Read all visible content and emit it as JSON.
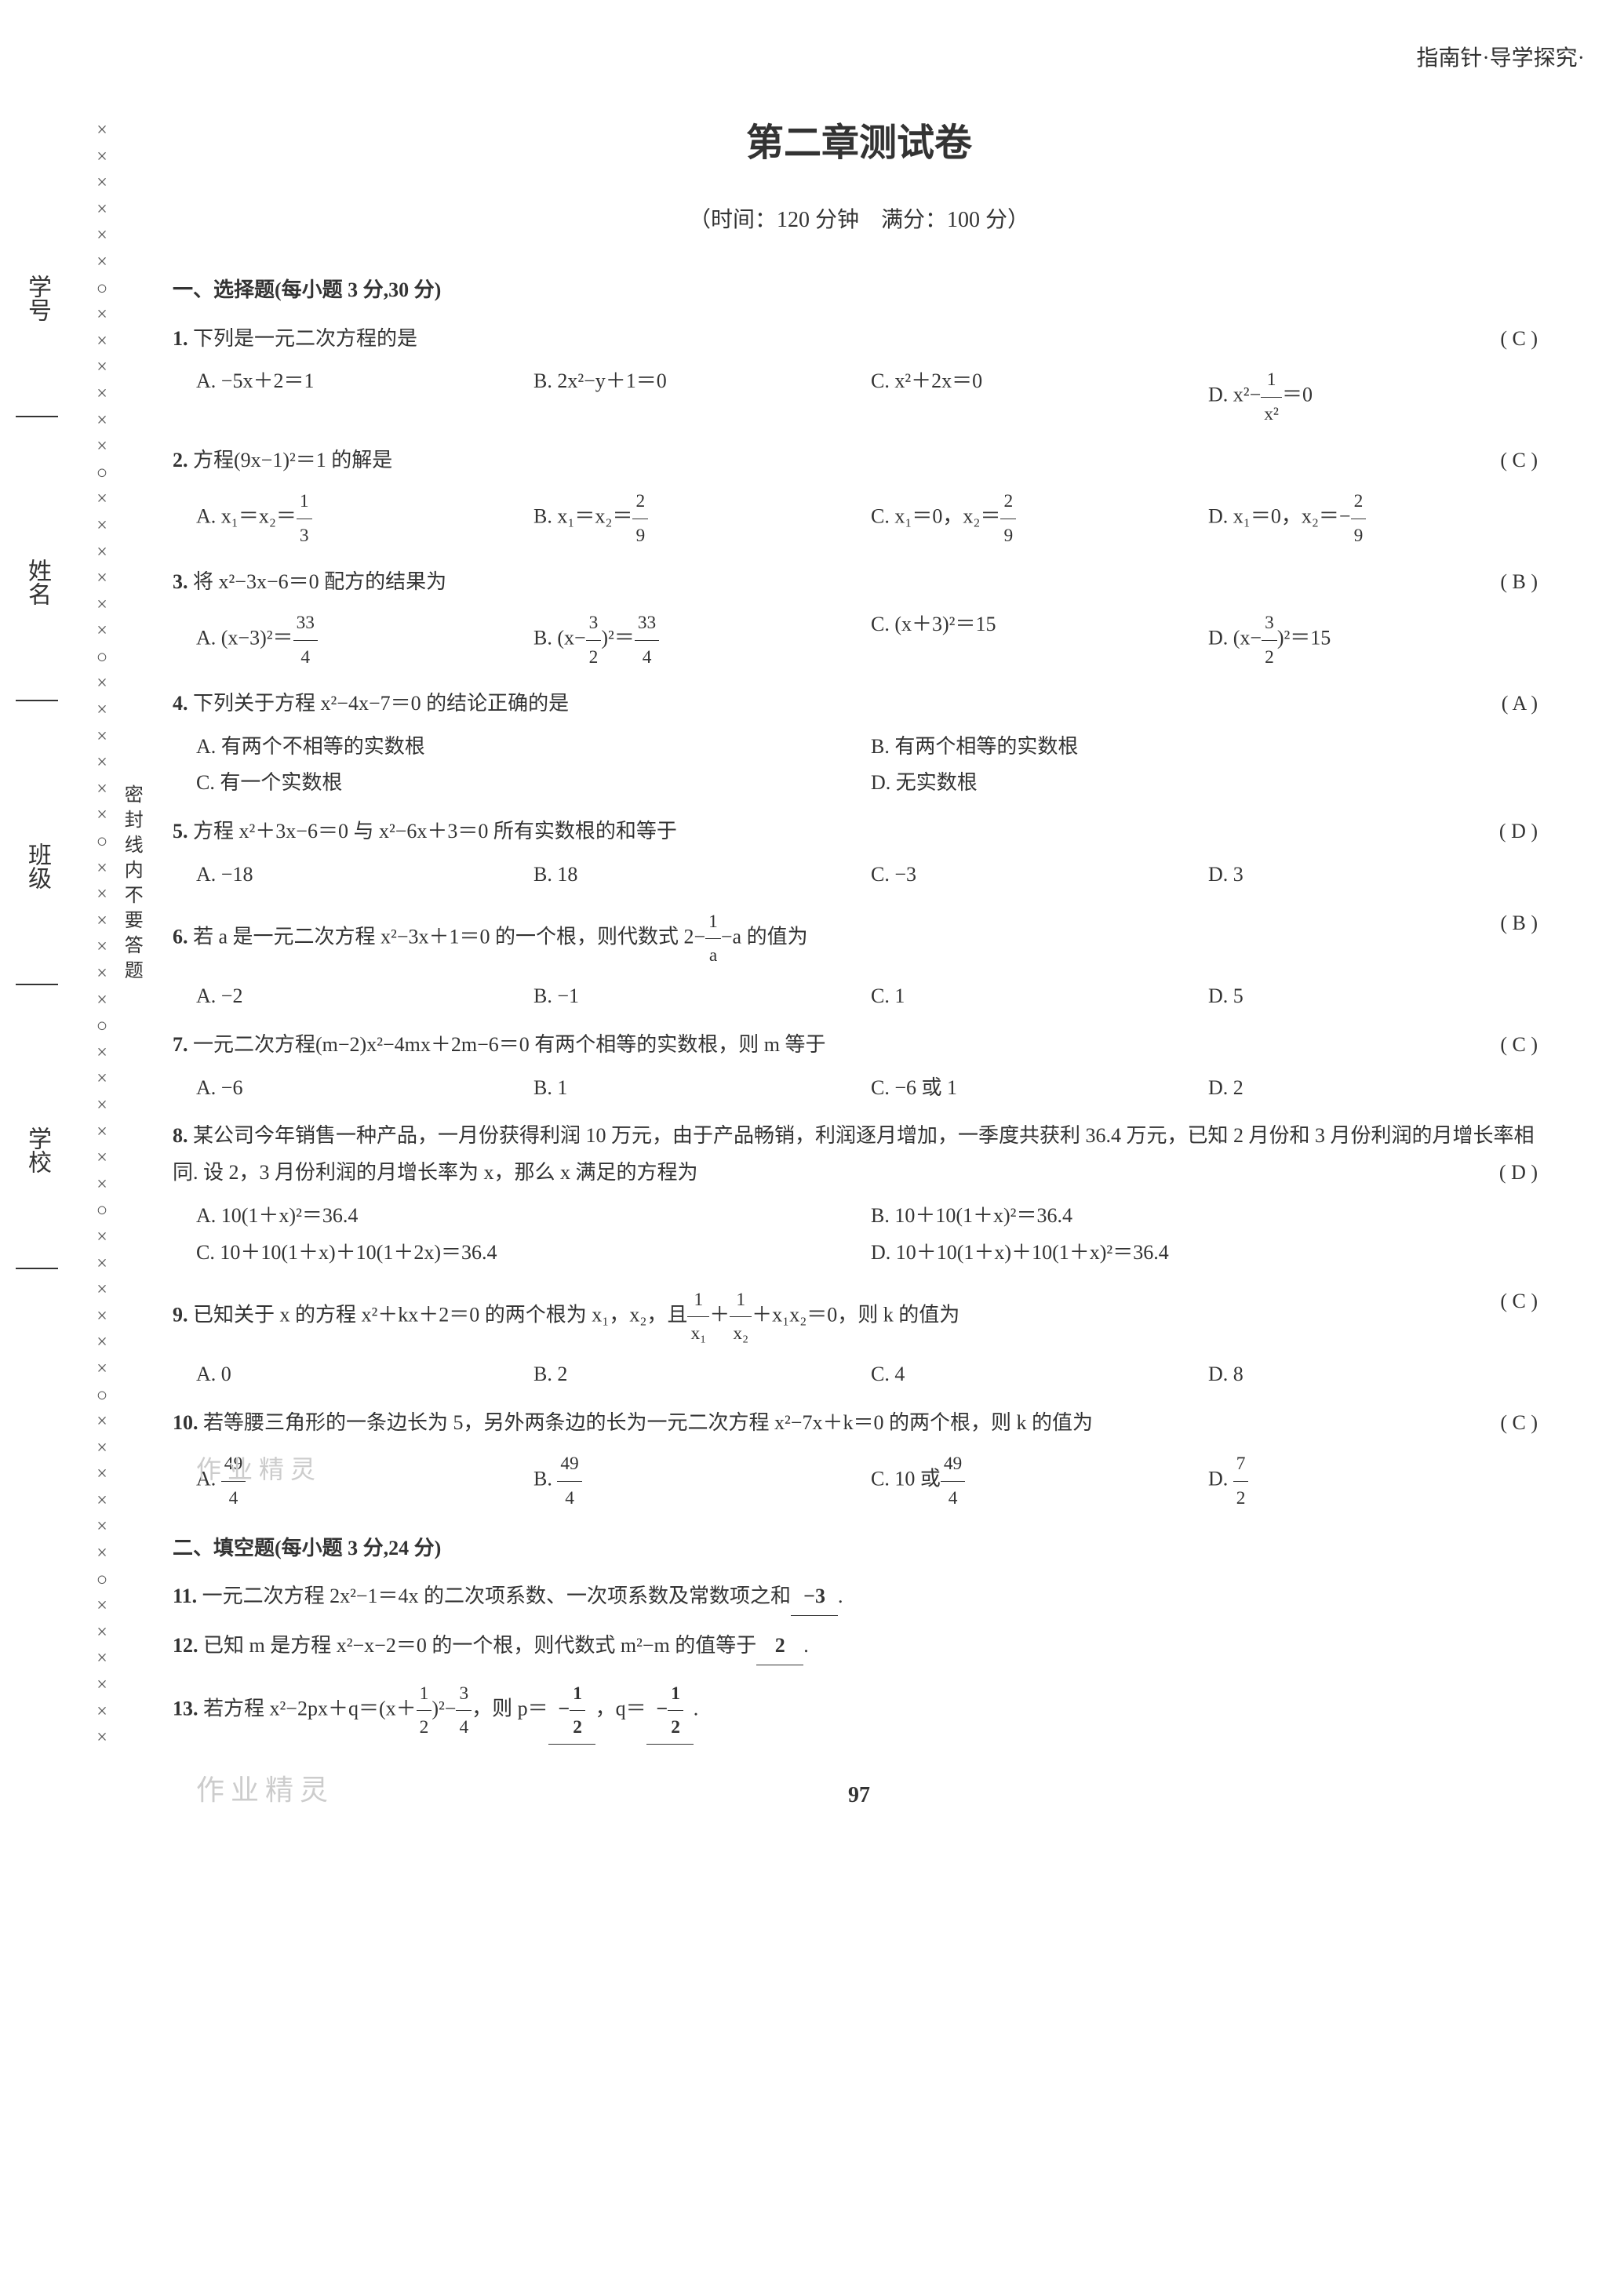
{
  "header_right": "指南针·导学探究·",
  "title": "第二章测试卷",
  "subtitle": "（时间：120 分钟　满分：100 分）",
  "side_labels": [
    "学号",
    "姓名",
    "班级",
    "学校"
  ],
  "vert_instruction": "密封线内不要答题",
  "margin_sequence": [
    "×",
    "×",
    "×",
    "×",
    "×",
    "×",
    "○",
    "×",
    "×",
    "×",
    "×",
    "×",
    "×",
    "○",
    "×",
    "×",
    "×",
    "×",
    "×",
    "×",
    "○",
    "×",
    "×",
    "×",
    "×",
    "×",
    "×",
    "○",
    "×",
    "×",
    "×",
    "×",
    "×",
    "×",
    "○",
    "×",
    "×",
    "×",
    "×",
    "×",
    "×",
    "○",
    "×",
    "×",
    "×",
    "×",
    "×",
    "×",
    "○",
    "×",
    "×",
    "×",
    "×",
    "×",
    "×",
    "○",
    "×",
    "×",
    "×",
    "×",
    "×",
    "×"
  ],
  "section1": {
    "header": "一、选择题(每小题 3 分,30 分)",
    "questions": [
      {
        "num": "1.",
        "text": "下列是一元二次方程的是",
        "answer": "( C )",
        "options": [
          {
            "label": "A.",
            "content": "−5x＋2＝1"
          },
          {
            "label": "B.",
            "content": "2x²−y＋1＝0"
          },
          {
            "label": "C.",
            "content": "x²＋2x＝0"
          },
          {
            "label": "D.",
            "content_html": "x²−<span class='frac'><span class='num'>1</span><span class='den'>x²</span></span>＝0"
          }
        ]
      },
      {
        "num": "2.",
        "text": "方程(9x−1)²＝1 的解是",
        "answer": "( C )",
        "options": [
          {
            "label": "A.",
            "content_html": "x₁＝x₂＝<span class='frac'><span class='num'>1</span><span class='den'>3</span></span>"
          },
          {
            "label": "B.",
            "content_html": "x₁＝x₂＝<span class='frac'><span class='num'>2</span><span class='den'>9</span></span>"
          },
          {
            "label": "C.",
            "content_html": "x₁＝0，x₂＝<span class='frac'><span class='num'>2</span><span class='den'>9</span></span>"
          },
          {
            "label": "D.",
            "content_html": "x₁＝0，x₂＝−<span class='frac'><span class='num'>2</span><span class='den'>9</span></span>"
          }
        ]
      },
      {
        "num": "3.",
        "text": "将 x²−3x−6＝0 配方的结果为",
        "answer": "( B )",
        "options": [
          {
            "label": "A.",
            "content_html": "(x−3)²＝<span class='frac'><span class='num'>33</span><span class='den'>4</span></span>"
          },
          {
            "label": "B.",
            "content_html": "(x−<span class='frac'><span class='num'>3</span><span class='den'>2</span></span>)²＝<span class='frac'><span class='num'>33</span><span class='den'>4</span></span>"
          },
          {
            "label": "C.",
            "content": "(x＋3)²＝15"
          },
          {
            "label": "D.",
            "content_html": "(x−<span class='frac'><span class='num'>3</span><span class='den'>2</span></span>)²＝15"
          }
        ]
      },
      {
        "num": "4.",
        "text": "下列关于方程 x²−4x−7＝0 的结论正确的是",
        "answer": "( A )",
        "options_half": [
          {
            "label": "A.",
            "content": "有两个不相等的实数根"
          },
          {
            "label": "B.",
            "content": "有两个相等的实数根"
          },
          {
            "label": "C.",
            "content": "有一个实数根"
          },
          {
            "label": "D.",
            "content": "无实数根"
          }
        ]
      },
      {
        "num": "5.",
        "text": "方程 x²＋3x−6＝0 与 x²−6x＋3＝0 所有实数根的和等于",
        "answer": "( D )",
        "options": [
          {
            "label": "A.",
            "content": "−18"
          },
          {
            "label": "B.",
            "content": "18"
          },
          {
            "label": "C.",
            "content": "−3"
          },
          {
            "label": "D.",
            "content": "3"
          }
        ]
      },
      {
        "num": "6.",
        "text_html": "若 a 是一元二次方程 x²−3x＋1＝0 的一个根，则代数式 2−<span class='frac'><span class='num'>1</span><span class='den'>a</span></span>−a 的值为",
        "answer": "( B )",
        "options": [
          {
            "label": "A.",
            "content": "−2"
          },
          {
            "label": "B.",
            "content": "−1"
          },
          {
            "label": "C.",
            "content": "1"
          },
          {
            "label": "D.",
            "content": "5"
          }
        ]
      },
      {
        "num": "7.",
        "text": "一元二次方程(m−2)x²−4mx＋2m−6＝0 有两个相等的实数根，则 m 等于",
        "answer": "( C )",
        "options": [
          {
            "label": "A.",
            "content": "−6"
          },
          {
            "label": "B.",
            "content": "1"
          },
          {
            "label": "C.",
            "content": "−6 或 1"
          },
          {
            "label": "D.",
            "content": "2"
          }
        ]
      },
      {
        "num": "8.",
        "text": "某公司今年销售一种产品，一月份获得利润 10 万元，由于产品畅销，利润逐月增加，一季度共获利 36.4 万元，已知 2 月份和 3 月份利润的月增长率相同. 设 2，3 月份利润的月增长率为 x，那么 x 满足的方程为",
        "answer": "( D )",
        "options_half": [
          {
            "label": "A.",
            "content": "10(1＋x)²＝36.4"
          },
          {
            "label": "B.",
            "content": "10＋10(1＋x)²＝36.4"
          },
          {
            "label": "C.",
            "content": "10＋10(1＋x)＋10(1＋2x)＝36.4"
          },
          {
            "label": "D.",
            "content": "10＋10(1＋x)＋10(1＋x)²＝36.4"
          }
        ]
      },
      {
        "num": "9.",
        "text_html": "已知关于 x 的方程 x²＋kx＋2＝0 的两个根为 x₁，x₂，且<span class='frac'><span class='num'>1</span><span class='den'>x₁</span></span>＋<span class='frac'><span class='num'>1</span><span class='den'>x₂</span></span>＋x₁x₂＝0，则 k 的值为",
        "answer": "( C )",
        "options": [
          {
            "label": "A.",
            "content": "0"
          },
          {
            "label": "B.",
            "content": "2"
          },
          {
            "label": "C.",
            "content": "4"
          },
          {
            "label": "D.",
            "content": "8"
          }
        ]
      },
      {
        "num": "10.",
        "text": "若等腰三角形的一条边长为 5，另外两条边的长为一元二次方程 x²−7x＋k＝0 的两个根，则 k 的值为",
        "answer": "( C )",
        "options": [
          {
            "label": "A.",
            "content_html": "<span class='frac'><span class='num'>49</span><span class='den'>4</span></span>"
          },
          {
            "label": "B.",
            "content_html": "<span class='frac'><span class='num'>49</span><span class='den'>4</span></span>"
          },
          {
            "label": "C.",
            "content_html": "10 或<span class='frac'><span class='num'>49</span><span class='den'>4</span></span>"
          },
          {
            "label": "D.",
            "content_html": "<span class='frac'><span class='num'>7</span><span class='den'>2</span></span>"
          }
        ],
        "first_opt_prefix": "作业精灵"
      }
    ]
  },
  "section2": {
    "header": "二、填空题(每小题 3 分,24 分)",
    "questions": [
      {
        "num": "11.",
        "text": "一元二次方程 2x²−1＝4x 的二次项系数、一次项系数及常数项之和",
        "blank": "−3",
        "suffix": "."
      },
      {
        "num": "12.",
        "text": "已知 m 是方程 x²−x−2＝0 的一个根，则代数式 m²−m 的值等于",
        "blank": "2",
        "suffix": "."
      },
      {
        "num": "13.",
        "text_html": "若方程 x²−2px＋q＝(x＋<span class='frac'><span class='num'>1</span><span class='den'>2</span></span>)²−<span class='frac'><span class='num'>3</span><span class='den'>4</span></span>，则 p＝",
        "blank_html": "−<span class='frac'><span class='num'>1</span><span class='den'>2</span></span>",
        "mid": "，q＝",
        "blank2_html": "−<span class='frac'><span class='num'>1</span><span class='den'>2</span></span>",
        "suffix": "."
      }
    ]
  },
  "page_num": "97",
  "watermark": "作业精灵"
}
